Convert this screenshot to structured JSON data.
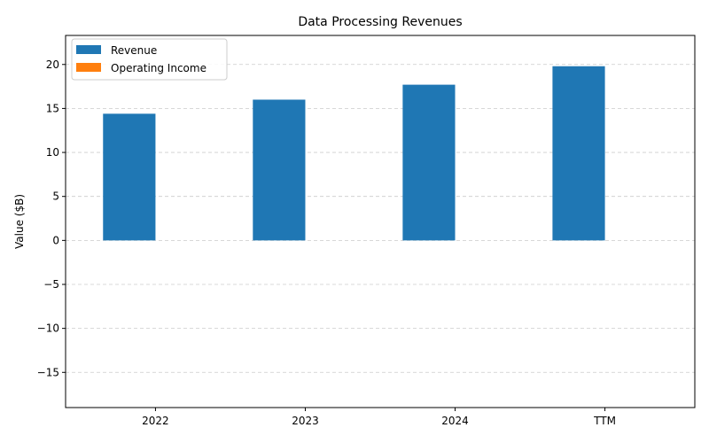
{
  "chart_data": {
    "type": "bar",
    "title": "Data Processing Revenues",
    "xlabel": "",
    "ylabel": "Value ($B)",
    "categories": [
      "2022",
      "2023",
      "2024",
      "TTM"
    ],
    "series": [
      {
        "name": "Revenue",
        "values": [
          14.4,
          16.0,
          17.7,
          19.8
        ],
        "color": "#1f77b4"
      },
      {
        "name": "Operating Income",
        "values": [
          0,
          0,
          0,
          0
        ],
        "color": "#ff7f0e"
      }
    ],
    "ylim": [
      -19,
      23.3
    ],
    "yticks": [
      -15,
      -10,
      -5,
      0,
      5,
      10,
      15,
      20
    ],
    "ytick_labels": [
      "−15",
      "−10",
      "−5",
      "0",
      "5",
      "10",
      "15",
      "20"
    ],
    "grid": "y-dashed",
    "legend_position": "top-left"
  }
}
